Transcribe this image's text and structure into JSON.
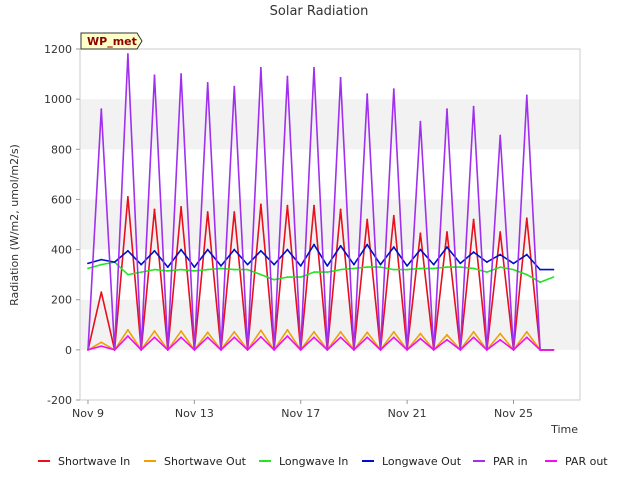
{
  "chart_data": {
    "type": "line",
    "title": "Solar Radiation",
    "xlabel": "Time",
    "ylabel": "Radiation (W/m2, umol/m2/s)",
    "badge": "WP_met",
    "x_start": "Nov 9",
    "x_range_days": [
      -0.3,
      18.5
    ],
    "ylim": [
      -200,
      1200
    ],
    "y_ticks": [
      -200,
      0,
      200,
      400,
      600,
      800,
      1000,
      1200
    ],
    "x_ticks": [
      {
        "day": 0,
        "label": "Nov 9"
      },
      {
        "day": 4,
        "label": "Nov 13"
      },
      {
        "day": 8,
        "label": "Nov 17"
      },
      {
        "day": 12,
        "label": "Nov 21"
      },
      {
        "day": 16,
        "label": "Nov 25"
      }
    ],
    "grid": "horizontal bands",
    "legend_position": "bottom",
    "x_days": [
      0,
      0.5,
      1,
      1.5,
      2,
      2.5,
      3,
      3.5,
      4,
      4.5,
      5,
      5.5,
      6,
      6.5,
      7,
      7.5,
      8,
      8.5,
      9,
      9.5,
      10,
      10.5,
      11,
      11.5,
      12,
      12.5,
      13,
      13.5,
      14,
      14.5,
      15,
      15.5,
      16,
      16.5,
      17,
      17.5
    ],
    "series": [
      {
        "name": "Shortwave In",
        "color": "#e8101e",
        "values": [
          0,
          230,
          0,
          610,
          0,
          560,
          0,
          570,
          0,
          550,
          0,
          550,
          0,
          580,
          0,
          575,
          0,
          575,
          0,
          560,
          0,
          520,
          0,
          535,
          0,
          465,
          0,
          470,
          0,
          520,
          0,
          470,
          0,
          525,
          0,
          0
        ]
      },
      {
        "name": "Shortwave Out",
        "color": "#f0a000",
        "values": [
          0,
          30,
          0,
          80,
          0,
          75,
          0,
          75,
          0,
          70,
          0,
          72,
          0,
          78,
          0,
          80,
          0,
          72,
          0,
          72,
          0,
          70,
          0,
          72,
          0,
          65,
          0,
          60,
          0,
          72,
          0,
          65,
          0,
          72,
          0,
          0
        ]
      },
      {
        "name": "Longwave In",
        "color": "#22e622",
        "values": [
          325,
          340,
          350,
          300,
          310,
          320,
          315,
          320,
          315,
          320,
          325,
          320,
          320,
          300,
          280,
          290,
          290,
          310,
          310,
          320,
          325,
          330,
          330,
          320,
          320,
          325,
          325,
          330,
          330,
          325,
          310,
          330,
          320,
          300,
          270,
          290
        ]
      },
      {
        "name": "Longwave Out",
        "color": "#0010c8",
        "values": [
          345,
          360,
          350,
          395,
          340,
          395,
          330,
          400,
          330,
          400,
          335,
          400,
          340,
          395,
          340,
          400,
          335,
          420,
          335,
          415,
          340,
          420,
          340,
          410,
          335,
          400,
          340,
          410,
          345,
          390,
          350,
          380,
          345,
          380,
          320,
          320
        ]
      },
      {
        "name": "PAR in",
        "color": "#a030ee",
        "values": [
          0,
          960,
          0,
          1180,
          0,
          1095,
          0,
          1100,
          0,
          1065,
          0,
          1050,
          0,
          1125,
          0,
          1090,
          0,
          1125,
          0,
          1085,
          0,
          1020,
          0,
          1040,
          0,
          910,
          0,
          960,
          0,
          970,
          0,
          855,
          0,
          1015,
          0,
          0
        ]
      },
      {
        "name": "PAR out",
        "color": "#ee10ee",
        "values": [
          0,
          15,
          0,
          55,
          0,
          50,
          0,
          50,
          0,
          50,
          0,
          50,
          0,
          52,
          0,
          55,
          0,
          50,
          0,
          50,
          0,
          50,
          0,
          50,
          0,
          45,
          0,
          40,
          0,
          50,
          0,
          40,
          0,
          50,
          0,
          0
        ]
      }
    ]
  }
}
